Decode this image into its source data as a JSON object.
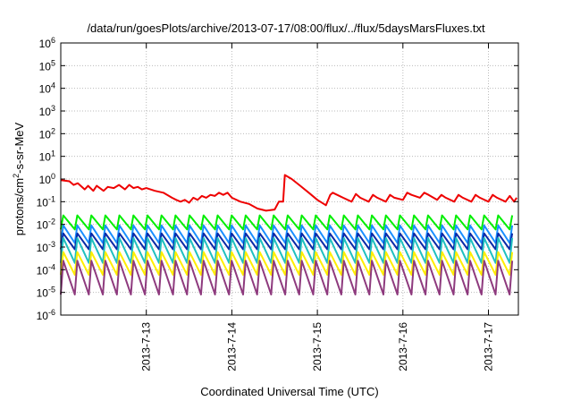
{
  "chart_data": {
    "type": "line",
    "title": "/data/run/goesPlots/archive/2013-07-17/08:00/flux/../flux/5daysMarsFluxes.txt",
    "xlabel": "Coordinated Universal Time (UTC)",
    "ylabel_parts": {
      "prefix": "protons/cm",
      "sup": "2",
      "suffix": "-s-sr-MeV"
    },
    "y_scale": "log",
    "ylim_exp": [
      -6,
      6
    ],
    "y_ticks": [
      {
        "base": "10",
        "exp": "-6"
      },
      {
        "base": "10",
        "exp": "-5"
      },
      {
        "base": "10",
        "exp": "-4"
      },
      {
        "base": "10",
        "exp": "-3"
      },
      {
        "base": "10",
        "exp": "-2"
      },
      {
        "base": "10",
        "exp": "-1"
      },
      {
        "base": "10",
        "exp": "0"
      },
      {
        "base": "10",
        "exp": "1"
      },
      {
        "base": "10",
        "exp": "2"
      },
      {
        "base": "10",
        "exp": "3"
      },
      {
        "base": "10",
        "exp": "4"
      },
      {
        "base": "10",
        "exp": "5"
      },
      {
        "base": "10",
        "exp": "6"
      }
    ],
    "x_range_days": [
      12.0,
      17.35
    ],
    "x_ticks": [
      {
        "label": "2013-7-13",
        "day": 13
      },
      {
        "label": "2013-7-14",
        "day": 14
      },
      {
        "label": "2013-7-15",
        "day": 15
      },
      {
        "label": "2013-7-16",
        "day": 16
      },
      {
        "label": "2013-7-17",
        "day": 17
      }
    ],
    "grid": true,
    "series": [
      {
        "color": "#ee0000",
        "x": [
          12.0,
          12.1,
          12.15,
          12.2,
          12.28,
          12.32,
          12.38,
          12.42,
          12.5,
          12.55,
          12.62,
          12.68,
          12.75,
          12.8,
          12.85,
          12.9,
          12.95,
          13.0,
          13.1,
          13.2,
          13.3,
          13.35,
          13.4,
          13.45,
          13.5,
          13.55,
          13.6,
          13.65,
          13.7,
          13.75,
          13.8,
          13.85,
          13.9,
          13.95,
          14.0,
          14.1,
          14.2,
          14.3,
          14.4,
          14.5,
          14.55,
          14.6,
          14.62,
          14.7,
          14.8,
          14.9,
          15.0,
          15.1,
          15.15,
          15.18,
          15.3,
          15.4,
          15.45,
          15.5,
          15.6,
          15.65,
          15.7,
          15.8,
          15.85,
          15.9,
          16.0,
          16.05,
          16.1,
          16.2,
          16.25,
          16.3,
          16.4,
          16.45,
          16.5,
          16.6,
          16.65,
          16.7,
          16.8,
          16.85,
          16.9,
          17.0,
          17.05,
          17.1,
          17.2,
          17.25,
          17.3,
          17.33
        ],
        "y": [
          0.9,
          0.8,
          0.55,
          0.65,
          0.35,
          0.5,
          0.3,
          0.5,
          0.3,
          0.45,
          0.4,
          0.55,
          0.35,
          0.55,
          0.4,
          0.45,
          0.35,
          0.4,
          0.3,
          0.25,
          0.15,
          0.12,
          0.1,
          0.12,
          0.09,
          0.15,
          0.12,
          0.18,
          0.15,
          0.2,
          0.18,
          0.25,
          0.2,
          0.25,
          0.15,
          0.1,
          0.08,
          0.05,
          0.04,
          0.045,
          0.1,
          0.1,
          1.5,
          1.0,
          0.5,
          0.25,
          0.12,
          0.07,
          0.2,
          0.25,
          0.15,
          0.1,
          0.22,
          0.15,
          0.1,
          0.2,
          0.15,
          0.1,
          0.2,
          0.15,
          0.12,
          0.25,
          0.2,
          0.15,
          0.25,
          0.2,
          0.12,
          0.2,
          0.15,
          0.1,
          0.2,
          0.15,
          0.1,
          0.2,
          0.15,
          0.1,
          0.2,
          0.15,
          0.1,
          0.18,
          0.1,
          0.15
        ]
      },
      {
        "color": "#00ee00",
        "base": 0.006,
        "peak": 0.025,
        "growth": 0
      },
      {
        "color": "#1a8fff",
        "base": 0.0015,
        "peak": 0.009,
        "growth": 0
      },
      {
        "color": "#0a2aa8",
        "base": 0.0008,
        "peak": 0.004,
        "growth": 0
      },
      {
        "color": "#20c0c0",
        "base": 0.0002,
        "peak": 0.0025,
        "growth": 0
      },
      {
        "color": "#ffee00",
        "base": 6e-05,
        "peak": 0.0006,
        "growth": 0
      },
      {
        "color": "#8e3a7e",
        "base": 8e-06,
        "peak": 0.00025,
        "growth": 0
      }
    ]
  }
}
